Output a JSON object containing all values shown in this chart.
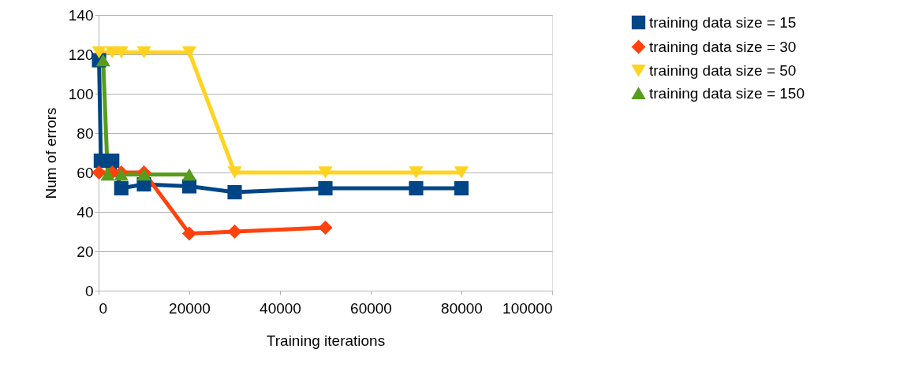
{
  "chart_data": {
    "type": "line",
    "xlabel": "Training iterations",
    "ylabel": "Num of errors",
    "xlim": [
      0,
      100000
    ],
    "xticks": [
      0,
      20000,
      40000,
      60000,
      80000,
      100000
    ],
    "ylim": [
      0,
      140
    ],
    "yticks": [
      0,
      20,
      40,
      60,
      80,
      100,
      120,
      140
    ],
    "grid": "y",
    "legend": "right",
    "line_style": "solid",
    "series": [
      {
        "name": "training data size = 15",
        "color": "#004586",
        "marker": "square",
        "x": [
          100,
          500,
          3000,
          5000,
          10000,
          20000,
          30000,
          50000,
          70000,
          80000
        ],
        "values": [
          117,
          66,
          66,
          52,
          54,
          53,
          50,
          52,
          52,
          52
        ]
      },
      {
        "name": "training data size = 30",
        "color": "#ff420e",
        "marker": "diamond",
        "x": [
          100,
          3000,
          5000,
          10000,
          20000,
          30000,
          50000
        ],
        "values": [
          60,
          60,
          60,
          60,
          29,
          30,
          32
        ]
      },
      {
        "name": "training data size = 50",
        "color": "#ffd320",
        "marker": "triangle-down",
        "x": [
          100,
          3000,
          5000,
          10000,
          20000,
          30000,
          50000,
          70000,
          80000
        ],
        "values": [
          121,
          121,
          121,
          121,
          121,
          60,
          60,
          60,
          60
        ]
      },
      {
        "name": "training data size = 150",
        "color": "#579d1c",
        "marker": "triangle",
        "x": [
          1000,
          2000,
          5000,
          10000,
          20000
        ],
        "values": [
          117,
          59,
          59,
          59,
          59
        ]
      }
    ]
  }
}
